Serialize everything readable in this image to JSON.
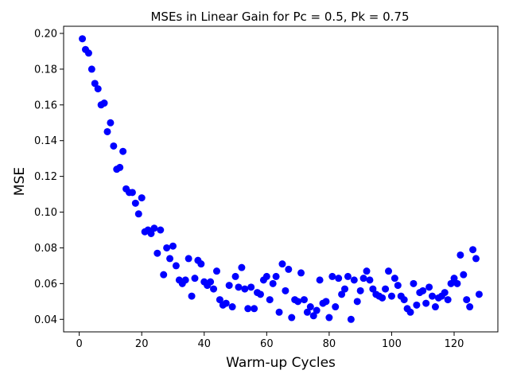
{
  "chart_data": {
    "type": "scatter",
    "title": "MSEs in Linear Gain for Pc = 0.5, Pk = 0.75",
    "xlabel": "Warm-up Cycles",
    "ylabel": "MSE",
    "xlim": [
      -5,
      134
    ],
    "ylim": [
      0.033,
      0.204
    ],
    "xticks": [
      0,
      20,
      40,
      60,
      80,
      100,
      120
    ],
    "xtick_labels": [
      "0",
      "20",
      "40",
      "60",
      "80",
      "100",
      "120"
    ],
    "yticks": [
      0.04,
      0.06,
      0.08,
      0.1,
      0.12,
      0.14,
      0.16,
      0.18,
      0.2
    ],
    "ytick_labels": [
      "0.04",
      "0.06",
      "0.08",
      "0.10",
      "0.12",
      "0.14",
      "0.16",
      "0.18",
      "0.20"
    ],
    "grid": false,
    "color": "#0000ff",
    "x": [
      1,
      2,
      3,
      4,
      5,
      6,
      7,
      8,
      9,
      10,
      11,
      12,
      13,
      14,
      15,
      16,
      17,
      18,
      19,
      20,
      21,
      22,
      23,
      24,
      25,
      26,
      27,
      28,
      29,
      30,
      31,
      32,
      33,
      34,
      35,
      36,
      37,
      38,
      39,
      40,
      41,
      42,
      43,
      44,
      45,
      46,
      47,
      48,
      49,
      50,
      51,
      52,
      53,
      54,
      55,
      56,
      57,
      58,
      59,
      60,
      61,
      62,
      63,
      64,
      65,
      66,
      67,
      68,
      69,
      70,
      71,
      72,
      73,
      74,
      75,
      76,
      77,
      78,
      79,
      80,
      81,
      82,
      83,
      84,
      85,
      86,
      87,
      88,
      89,
      90,
      91,
      92,
      93,
      94,
      95,
      96,
      97,
      98,
      99,
      100,
      101,
      102,
      103,
      104,
      105,
      106,
      107,
      108,
      109,
      110,
      111,
      112,
      113,
      114,
      115,
      116,
      117,
      118,
      119,
      120,
      121,
      122,
      123,
      124,
      125,
      126,
      127,
      128
    ],
    "y": [
      0.197,
      0.191,
      0.189,
      0.18,
      0.172,
      0.169,
      0.16,
      0.161,
      0.145,
      0.15,
      0.137,
      0.124,
      0.125,
      0.134,
      0.113,
      0.111,
      0.111,
      0.105,
      0.099,
      0.108,
      0.089,
      0.09,
      0.088,
      0.091,
      0.077,
      0.09,
      0.065,
      0.08,
      0.074,
      0.081,
      0.07,
      0.062,
      0.06,
      0.062,
      0.074,
      0.053,
      0.063,
      0.073,
      0.071,
      0.061,
      0.059,
      0.061,
      0.057,
      0.067,
      0.051,
      0.048,
      0.049,
      0.059,
      0.047,
      0.064,
      0.058,
      0.069,
      0.057,
      0.046,
      0.058,
      0.046,
      0.055,
      0.054,
      0.062,
      0.064,
      0.051,
      0.06,
      0.064,
      0.044,
      0.071,
      0.056,
      0.068,
      0.041,
      0.051,
      0.05,
      0.066,
      0.051,
      0.044,
      0.047,
      0.042,
      0.045,
      0.062,
      0.049,
      0.05,
      0.041,
      0.064,
      0.047,
      0.063,
      0.054,
      0.057,
      0.064,
      0.04,
      0.062,
      0.05,
      0.056,
      0.063,
      0.067,
      0.062,
      0.057,
      0.054,
      0.053,
      0.052,
      0.057,
      0.067,
      0.053,
      0.063,
      0.059,
      0.053,
      0.051,
      0.046,
      0.044,
      0.06,
      0.048,
      0.055,
      0.056,
      0.049,
      0.058,
      0.053,
      0.047,
      0.052,
      0.053,
      0.055,
      0.051,
      0.06,
      0.063,
      0.06,
      0.076,
      0.065,
      0.051,
      0.047,
      0.079,
      0.074,
      0.054
    ]
  }
}
